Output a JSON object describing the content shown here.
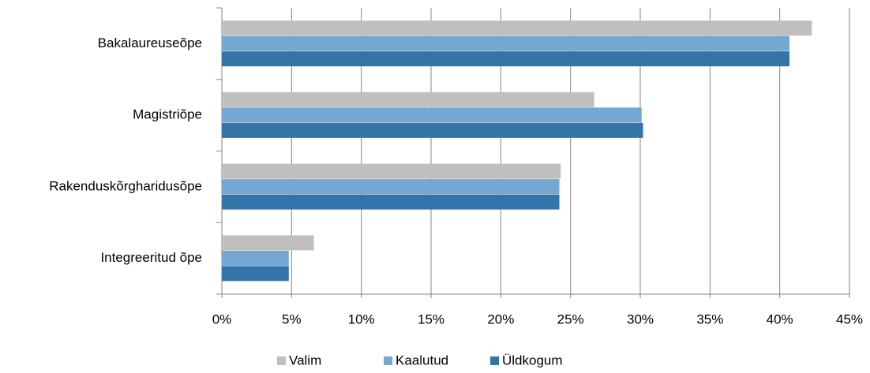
{
  "chart_data": {
    "type": "bar",
    "orientation": "horizontal",
    "categories": [
      "Bakalaureuseõpe",
      "Magistriõpe",
      "Rakenduskõrgharidusõpe",
      "Integreeritud õpe"
    ],
    "series": [
      {
        "name": "Valim",
        "color": "#bfbfbf",
        "values": [
          42.3,
          26.7,
          24.3,
          6.6
        ]
      },
      {
        "name": "Kaalutud",
        "color": "#74a7d1",
        "values": [
          40.7,
          30.1,
          24.2,
          4.8
        ]
      },
      {
        "name": "Üldkogum",
        "color": "#3474a8",
        "values": [
          40.7,
          30.2,
          24.2,
          4.8
        ]
      }
    ],
    "xlim": [
      0,
      45
    ],
    "xticks": [
      {
        "value": 0,
        "label": "0%"
      },
      {
        "value": 5,
        "label": "5%"
      },
      {
        "value": 10,
        "label": "10%"
      },
      {
        "value": 15,
        "label": "15%"
      },
      {
        "value": 20,
        "label": "20%"
      },
      {
        "value": 25,
        "label": "25%"
      },
      {
        "value": 30,
        "label": "30%"
      },
      {
        "value": 35,
        "label": "35%"
      },
      {
        "value": 40,
        "label": "40%"
      },
      {
        "value": 45,
        "label": "45%"
      }
    ],
    "grid": true,
    "legend": "bottom"
  }
}
